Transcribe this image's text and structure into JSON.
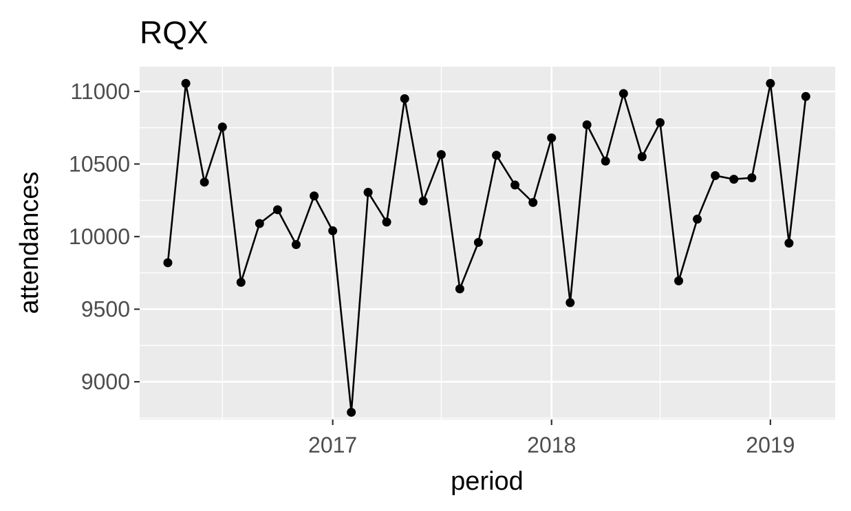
{
  "chart_data": {
    "type": "line",
    "title": "RQX",
    "xlabel": "period",
    "ylabel": "attendances",
    "x_ticks": [
      "2017",
      "2018",
      "2019"
    ],
    "y_ticks": [
      9000,
      9500,
      10000,
      10500,
      11000
    ],
    "ylim": [
      8740,
      11170
    ],
    "xlim": [
      "2016-02-14",
      "2019-04-19"
    ],
    "grid": true,
    "legend": "none",
    "colors": {
      "panel": "#ebebeb",
      "grid": "#ffffff",
      "line": "#000000"
    },
    "series": [
      {
        "x": [
          "2016-04",
          "2016-05",
          "2016-06",
          "2016-07",
          "2016-08",
          "2016-09",
          "2016-10",
          "2016-11",
          "2016-12",
          "2017-01",
          "2017-02",
          "2017-03",
          "2017-04",
          "2017-05",
          "2017-06",
          "2017-07",
          "2017-08",
          "2017-09",
          "2017-10",
          "2017-11",
          "2017-12",
          "2018-01",
          "2018-02",
          "2018-03",
          "2018-04",
          "2018-05",
          "2018-06",
          "2018-07",
          "2018-08",
          "2018-09",
          "2018-10",
          "2018-11",
          "2018-12",
          "2019-01",
          "2019-02",
          "2019-03"
        ],
        "values": [
          9820,
          11055,
          10375,
          10755,
          9685,
          10090,
          10185,
          9945,
          10280,
          10040,
          8790,
          10305,
          10100,
          10950,
          10245,
          10565,
          9640,
          9960,
          10560,
          10355,
          10235,
          10680,
          9545,
          10770,
          10520,
          10985,
          10550,
          10785,
          9695,
          10120,
          10420,
          10395,
          10405,
          11055,
          9955,
          10965
        ]
      }
    ]
  }
}
